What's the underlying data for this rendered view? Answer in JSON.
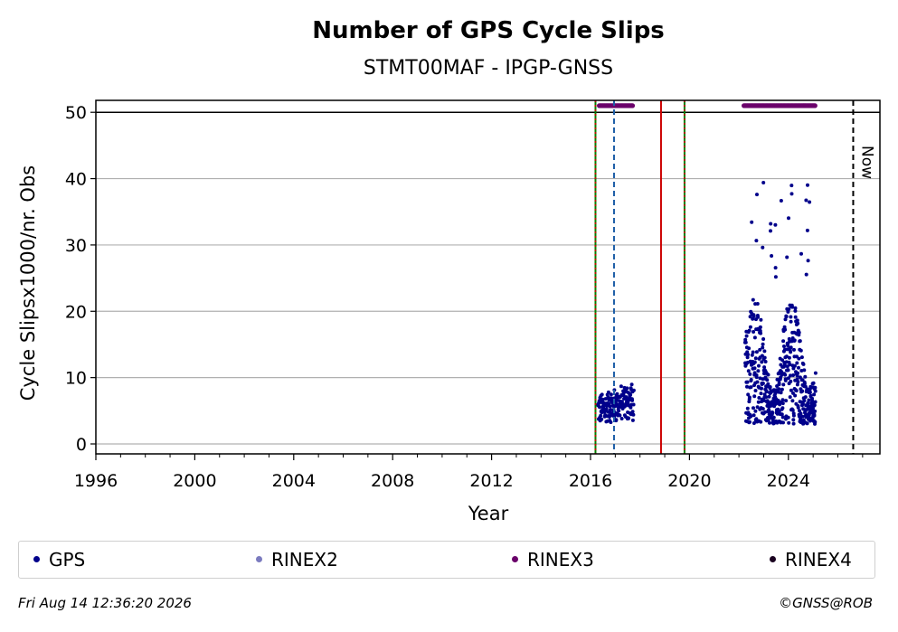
{
  "chart_data": {
    "type": "scatter",
    "title": "Number of GPS Cycle Slips",
    "subtitle": "STMT00MAF - IPGP-GNSS",
    "xlabel": "Year",
    "ylabel": "Cycle Slipsx1000/nr. Obs",
    "xlim": [
      1996,
      2027.7
    ],
    "ylim": [
      -1.5,
      51.8
    ],
    "x_ticks": [
      1996,
      2000,
      2004,
      2008,
      2012,
      2016,
      2020,
      2024
    ],
    "y_ticks": [
      0,
      10,
      20,
      30,
      40,
      50
    ],
    "grid": "horizontal",
    "legend_position": "bottom",
    "series": [
      {
        "name": "GPS",
        "color": "#00008b",
        "segments": [
          {
            "from": 2016.3,
            "to": 2017.75,
            "base": 4.5,
            "spread": 4.5,
            "max": 13
          },
          {
            "from": 2022.25,
            "to": 2025.1,
            "base": 11,
            "spread": 14,
            "max": 43.5
          }
        ]
      },
      {
        "name": "RINEX2",
        "color": "#7b7bbf"
      },
      {
        "name": "RINEX3",
        "color": "#6a006a",
        "bars": [
          [
            2016.35,
            2017.7
          ],
          [
            2022.2,
            2025.1
          ]
        ],
        "y": 51
      },
      {
        "name": "RINEX4",
        "color": "#1a0020"
      }
    ],
    "vertical_lines": [
      {
        "x": 2016.2,
        "color": "#008000",
        "style": "solid"
      },
      {
        "x": 2016.2,
        "color": "#cc0000",
        "style": "dotted"
      },
      {
        "x": 2016.95,
        "color": "#1f5fa8",
        "style": "dashed"
      },
      {
        "x": 2018.85,
        "color": "#cc0000",
        "style": "solid"
      },
      {
        "x": 2019.8,
        "color": "#008000",
        "style": "solid"
      },
      {
        "x": 2019.8,
        "color": "#cc0000",
        "style": "dotted"
      },
      {
        "x": 2026.62,
        "color": "#000000",
        "style": "dashed",
        "label": "Now"
      }
    ],
    "hline": 50
  },
  "footer": {
    "timestamp": "Fri Aug 14 12:36:20 2026",
    "copyright": "©GNSS@ROB"
  }
}
